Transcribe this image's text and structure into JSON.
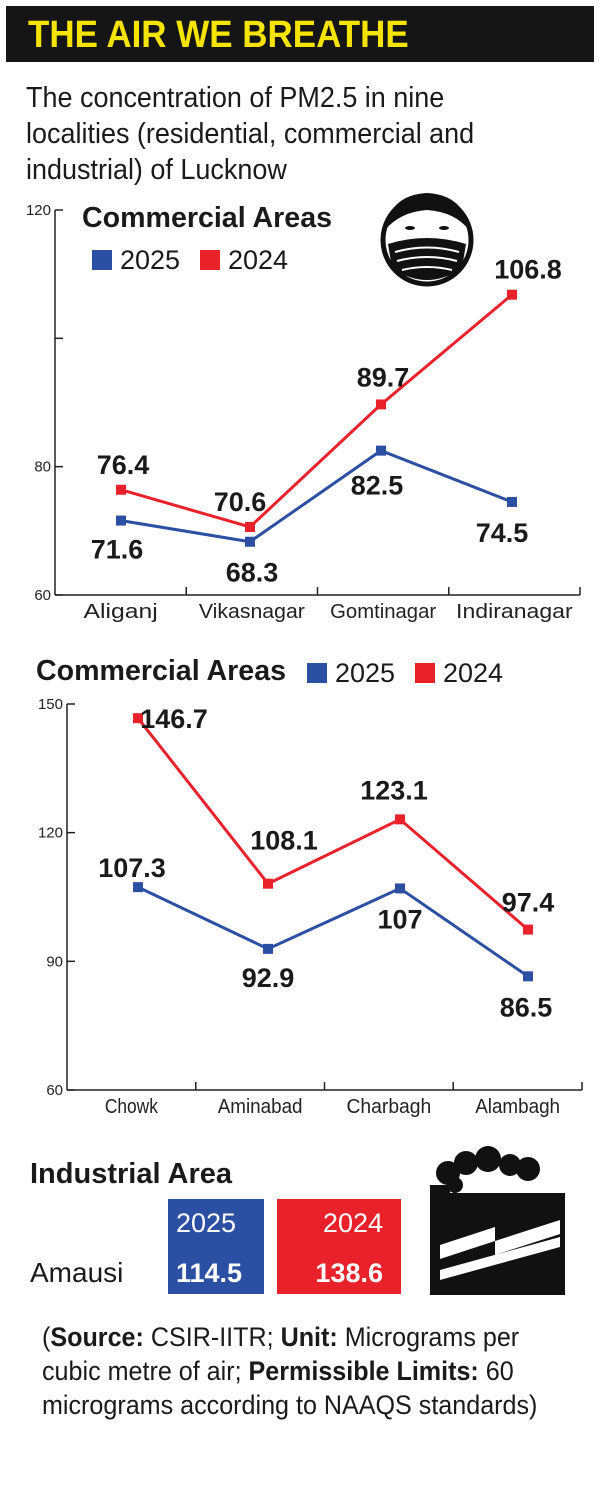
{
  "header": {
    "title": "THE AIR WE BREATHE",
    "subtitle": "The concentration of PM2.5 in nine localities (residential, commercial and industrial) of Lucknow"
  },
  "colors": {
    "series_2025": "#2b4fa3",
    "series_2024": "#e8212b",
    "title_bar": "#151515",
    "title_text": "#f4e400"
  },
  "chart_data": [
    {
      "type": "line",
      "title": "Commercial Areas",
      "categories": [
        "Aliganj",
        "Vikasnagar",
        "Gomtinagar",
        "Indiranagar"
      ],
      "series": [
        {
          "name": "2025",
          "values": [
            71.6,
            68.3,
            82.5,
            74.5
          ],
          "labels": [
            "71.6",
            "68.3",
            "82.5",
            "74.5"
          ]
        },
        {
          "name": "2024",
          "values": [
            76.4,
            70.6,
            89.7,
            106.8
          ],
          "labels": [
            "76.4",
            "70.6",
            "89.7",
            "106.8"
          ]
        }
      ],
      "ylim": [
        60,
        120
      ],
      "yticks": [
        60,
        80,
        120
      ],
      "ytick_labels": [
        "60",
        "80",
        "120"
      ]
    },
    {
      "type": "line",
      "title": "Commercial Areas",
      "categories": [
        "Chowk",
        "Aminabad",
        "Charbagh",
        "Alambagh"
      ],
      "series": [
        {
          "name": "2025",
          "values": [
            107.3,
            92.9,
            107,
            86.5
          ],
          "labels": [
            "107.3",
            "92.9",
            "107",
            "86.5"
          ]
        },
        {
          "name": "2024",
          "values": [
            146.7,
            108.1,
            123.1,
            97.4
          ],
          "labels": [
            "146.7",
            "108.1",
            "123.1",
            "97.4"
          ]
        }
      ],
      "ylim": [
        60,
        150
      ],
      "yticks": [
        60,
        90,
        120,
        150
      ],
      "ytick_labels": [
        "60",
        "90",
        "120",
        "150"
      ]
    },
    {
      "type": "table",
      "title": "Industrial Area",
      "locality": "Amausi",
      "columns": [
        "2025",
        "2024"
      ],
      "values": [
        114.5,
        138.6
      ],
      "labels": [
        "114.5",
        "138.6"
      ]
    }
  ],
  "footer": {
    "open_paren": "(",
    "source_label": "Source:",
    "source_value": " CSIR-IITR; ",
    "unit_label": "Unit:",
    "unit_value": " Micrograms per cubic metre of air; ",
    "limits_label": "Permissible Limits:",
    "limits_value": " 60 micrograms according to NAAQS standards)"
  }
}
